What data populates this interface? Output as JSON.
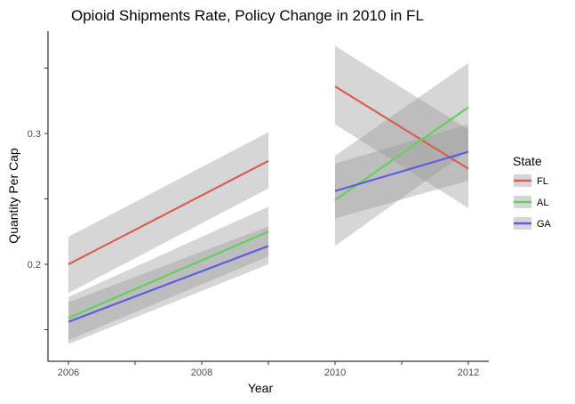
{
  "chart_data": {
    "type": "line",
    "title": "Opioid Shipments Rate, Policy Change in 2010 in FL",
    "xlabel": "Year",
    "ylabel": "Quantity Per Cap",
    "x_ticks": [
      "2006",
      "2008",
      "2010",
      "2012"
    ],
    "y_ticks": [
      "0.2",
      "0.3"
    ],
    "xlim": [
      2005.7,
      2012.3
    ],
    "ylim": [
      0.127,
      0.4
    ],
    "legend_title": "State",
    "legend_position": "right",
    "grid": false,
    "series": [
      {
        "name": "FL",
        "color": "#d95f54",
        "segments": [
          {
            "x": [
              2006,
              2009
            ],
            "y": [
              0.2,
              0.279
            ],
            "band_lower": [
              0.178,
              0.258
            ],
            "band_upper": [
              0.221,
              0.301
            ]
          },
          {
            "x": [
              2010,
              2012
            ],
            "y": [
              0.336,
              0.273
            ],
            "band_lower": [
              0.307,
              0.243
            ],
            "band_upper": [
              0.367,
              0.303
            ]
          }
        ]
      },
      {
        "name": "AL",
        "color": "#62d15b",
        "segments": [
          {
            "x": [
              2006,
              2009
            ],
            "y": [
              0.159,
              0.225
            ],
            "band_lower": [
              0.142,
              0.206
            ],
            "band_upper": [
              0.175,
              0.244
            ]
          },
          {
            "x": [
              2010,
              2012
            ],
            "y": [
              0.249,
              0.32
            ],
            "band_lower": [
              0.214,
              0.287
            ],
            "band_upper": [
              0.283,
              0.354
            ]
          }
        ]
      },
      {
        "name": "GA",
        "color": "#5f5ee0",
        "segments": [
          {
            "x": [
              2006,
              2009
            ],
            "y": [
              0.156,
              0.214
            ],
            "band_lower": [
              0.139,
              0.2
            ],
            "band_upper": [
              0.171,
              0.229
            ]
          },
          {
            "x": [
              2010,
              2012
            ],
            "y": [
              0.256,
              0.286
            ],
            "band_lower": [
              0.235,
              0.264
            ],
            "band_upper": [
              0.277,
              0.307
            ]
          }
        ]
      }
    ]
  }
}
